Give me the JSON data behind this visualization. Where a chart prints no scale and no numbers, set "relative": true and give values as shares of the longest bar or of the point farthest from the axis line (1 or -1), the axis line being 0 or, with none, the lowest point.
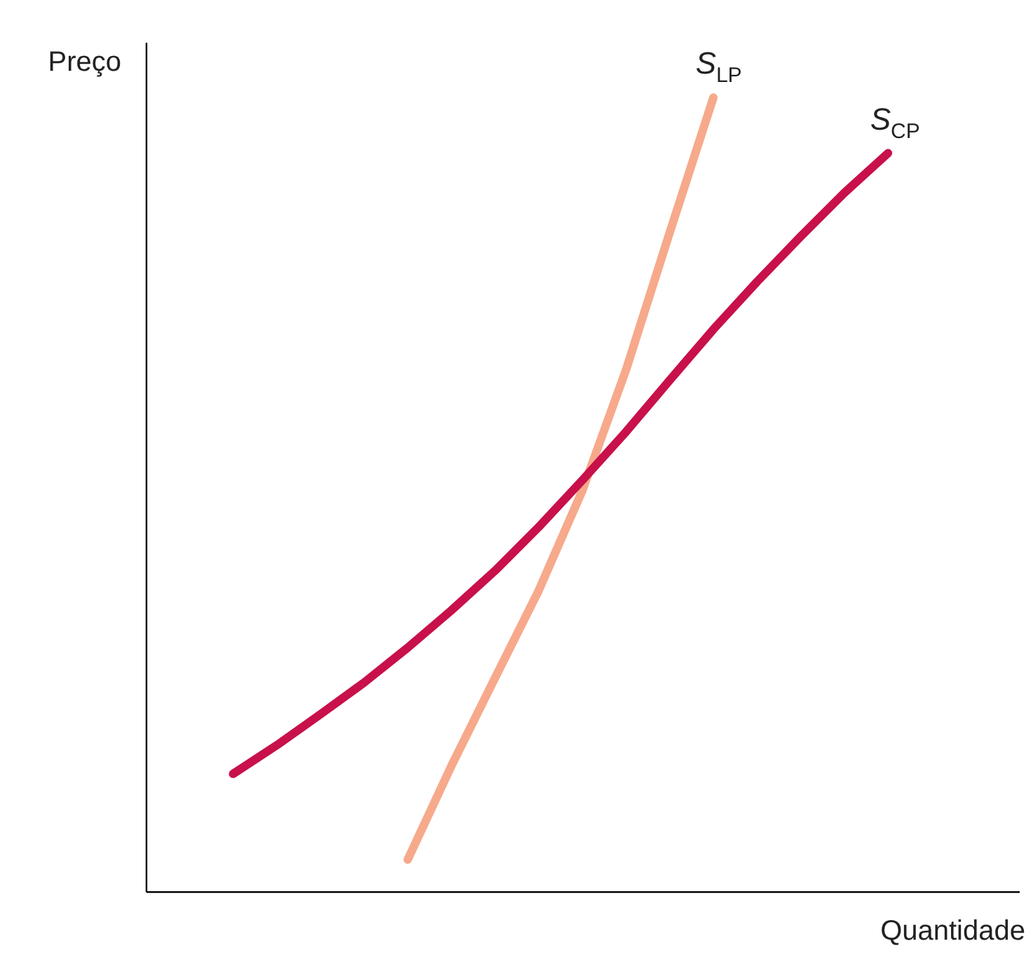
{
  "chart_data": {
    "type": "line",
    "relative": true,
    "xlabel": "Quantidade",
    "ylabel": "Preço",
    "marker": "none",
    "line_style": "solid",
    "categories": [
      null,
      null,
      null,
      null,
      null,
      null,
      null,
      null,
      null,
      null,
      null,
      null,
      null,
      null,
      null,
      null,
      null,
      null,
      null,
      null,
      null
    ],
    "series": [
      {
        "name": "S$_{LP}$",
        "color": "#f7a98b",
        "values": [
          null,
          null,
          null,
          null,
          null,
          null,
          0.04,
          0.158,
          0.269,
          0.379,
          0.505,
          0.657,
          0.83,
          1.0,
          null,
          null,
          null,
          null,
          null,
          null,
          null
        ]
      },
      {
        "name": "S$_{CP}$",
        "color": "#c8104a",
        "values": [
          null,
          null,
          0.148,
          0.184,
          0.223,
          0.263,
          0.307,
          0.354,
          0.404,
          0.459,
          0.518,
          0.579,
          0.644,
          0.708,
          0.768,
          0.825,
          0.88,
          0.93,
          null,
          null,
          null
        ]
      }
    ]
  }
}
